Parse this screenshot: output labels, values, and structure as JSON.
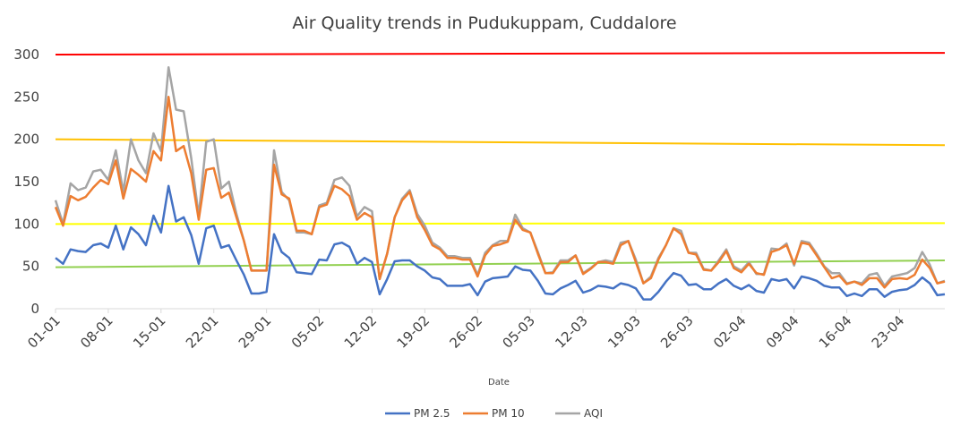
{
  "chart_data": {
    "type": "line",
    "title": "Air Quality trends in Pudukuppam, Cuddalore",
    "xlabel": "Date",
    "ylabel": "",
    "ylim": [
      0,
      300
    ],
    "yticks": [
      0,
      50,
      100,
      150,
      200,
      250,
      300
    ],
    "x_tick_labels": [
      "01-01",
      "08-01",
      "15-01",
      "22-01",
      "29-01",
      "05-02",
      "12-02",
      "19-02",
      "26-02",
      "05-03",
      "12-03",
      "19-03",
      "26-03",
      "02-04",
      "09-04",
      "16-04",
      "23-04"
    ],
    "x_tick_day_index": [
      0,
      7,
      14,
      21,
      28,
      35,
      42,
      49,
      56,
      63,
      70,
      77,
      84,
      91,
      98,
      105,
      112
    ],
    "grid": false,
    "legend_position": "bottom-center",
    "series": [
      {
        "name": "PM 2.5",
        "color": "#4472C4",
        "values": [
          60,
          53,
          70,
          68,
          67,
          75,
          77,
          72,
          98,
          70,
          96,
          88,
          75,
          110,
          90,
          145,
          103,
          108,
          87,
          53,
          95,
          98,
          72,
          75,
          57,
          40,
          18,
          18,
          20,
          88,
          67,
          60,
          43,
          42,
          41,
          58,
          57,
          76,
          78,
          73,
          53,
          60,
          55,
          17,
          35,
          56,
          57,
          57,
          50,
          45,
          37,
          35,
          27,
          27,
          27,
          29,
          16,
          32,
          36,
          37,
          38,
          50,
          46,
          45,
          33,
          18,
          17,
          24,
          28,
          33,
          19,
          22,
          27,
          26,
          24,
          30,
          28,
          24,
          11,
          11,
          20,
          32,
          42,
          39,
          28,
          29,
          23,
          23,
          30,
          35,
          27,
          23,
          28,
          21,
          19,
          35,
          33,
          35,
          24,
          38,
          36,
          33,
          27,
          25,
          25,
          15,
          18,
          15,
          23,
          23,
          14,
          20,
          22,
          23,
          28,
          37,
          30,
          16,
          17
        ],
        "labels_visible": false
      },
      {
        "name": "PM 10",
        "color": "#ED7D31",
        "values": [
          120,
          98,
          133,
          128,
          132,
          143,
          152,
          147,
          175,
          130,
          165,
          158,
          150,
          186,
          175,
          250,
          186,
          192,
          160,
          105,
          164,
          166,
          131,
          137,
          108,
          80,
          45,
          45,
          45,
          170,
          135,
          130,
          92,
          92,
          88,
          120,
          123,
          145,
          141,
          133,
          105,
          113,
          108,
          35,
          65,
          108,
          128,
          138,
          108,
          93,
          75,
          70,
          60,
          60,
          58,
          58,
          38,
          63,
          74,
          76,
          79,
          105,
          93,
          90,
          65,
          42,
          42,
          55,
          55,
          63,
          41,
          47,
          55,
          55,
          53,
          75,
          80,
          55,
          30,
          36,
          58,
          75,
          95,
          88,
          66,
          64,
          46,
          45,
          55,
          68,
          48,
          43,
          53,
          42,
          40,
          67,
          70,
          75,
          53,
          78,
          76,
          63,
          49,
          36,
          39,
          29,
          32,
          28,
          36,
          36,
          25,
          35,
          36,
          35,
          40,
          58,
          48,
          30,
          32
        ],
        "labels_visible": false
      },
      {
        "name": "AQI",
        "color": "#A5A5A5",
        "values": [
          128,
          100,
          148,
          140,
          143,
          162,
          164,
          152,
          187,
          138,
          200,
          175,
          160,
          207,
          186,
          285,
          235,
          233,
          178,
          110,
          197,
          200,
          142,
          150,
          112,
          80,
          45,
          45,
          45,
          187,
          138,
          128,
          90,
          90,
          88,
          122,
          125,
          152,
          155,
          145,
          109,
          120,
          115,
          35,
          65,
          108,
          130,
          140,
          112,
          98,
          78,
          72,
          62,
          62,
          60,
          60,
          40,
          66,
          75,
          80,
          80,
          111,
          95,
          90,
          67,
          42,
          43,
          57,
          57,
          63,
          42,
          48,
          55,
          57,
          55,
          78,
          80,
          58,
          30,
          38,
          60,
          75,
          95,
          92,
          66,
          66,
          47,
          45,
          57,
          70,
          50,
          45,
          55,
          41,
          41,
          71,
          70,
          77,
          51,
          80,
          78,
          65,
          50,
          42,
          42,
          30,
          32,
          30,
          40,
          42,
          27,
          38,
          40,
          42,
          48,
          67,
          52,
          30,
          33
        ],
        "labels_visible": false
      }
    ],
    "reference_lines": [
      {
        "color": "#FF0000",
        "y_start": 300,
        "y_end": 302
      },
      {
        "color": "#FFC000",
        "y_start": 200,
        "y_end": 193
      },
      {
        "color": "#FFFF00",
        "y_start": 100,
        "y_end": 101
      },
      {
        "color": "#92D050",
        "y_start": 49,
        "y_end": 57
      }
    ]
  }
}
